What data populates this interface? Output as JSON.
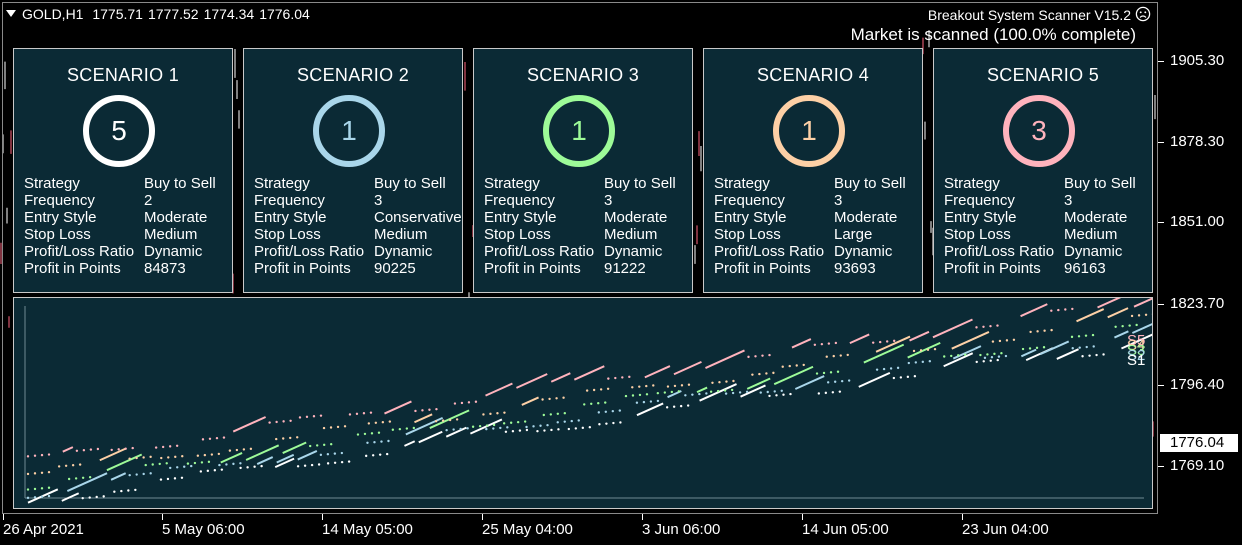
{
  "symbol": {
    "name": "GOLD,H1",
    "open": "1775.71",
    "high": "1777.52",
    "low": "1774.34",
    "close": "1776.04"
  },
  "indicator": {
    "title": "Breakout System Scanner V15.2",
    "status": "Market is scanned (100.0% complete)",
    "status_icon": "sad-face-icon"
  },
  "price_axis": {
    "labels": [
      "1905.30",
      "1878.30",
      "1851.00",
      "1823.70",
      "1796.40",
      "1769.10"
    ],
    "current_price": "1776.04"
  },
  "time_axis": {
    "labels": [
      "26 Apr 2021",
      "5 May 06:00",
      "14 May 05:00",
      "25 May 04:00",
      "3 Jun 06:00",
      "14 Jun 05:00",
      "23 Jun 04:00"
    ]
  },
  "row_labels": [
    "Strategy",
    "Frequency",
    "Entry Style",
    "Stop Loss",
    "Profit/Loss Ratio",
    "Profit in Points"
  ],
  "scenarios": [
    {
      "title": "SCENARIO 1",
      "count": "5",
      "color": "#ffffff",
      "values": [
        "Buy to Sell",
        "2",
        "Moderate",
        "Medium",
        "Dynamic",
        "84873"
      ]
    },
    {
      "title": "SCENARIO 2",
      "count": "1",
      "color": "#a9d6ea",
      "values": [
        "Buy to Sell",
        "3",
        "Conservative",
        "Medium",
        "Dynamic",
        "90225"
      ]
    },
    {
      "title": "SCENARIO 3",
      "count": "1",
      "color": "#9dfb98",
      "values": [
        "Buy to Sell",
        "3",
        "Moderate",
        "Medium",
        "Dynamic",
        "91222"
      ]
    },
    {
      "title": "SCENARIO 4",
      "count": "1",
      "color": "#fdd0a6",
      "values": [
        "Buy to Sell",
        "3",
        "Moderate",
        "Large",
        "Dynamic",
        "93693"
      ]
    },
    {
      "title": "SCENARIO 5",
      "count": "3",
      "color": "#ffb3bd",
      "values": [
        "Buy to Sell",
        "3",
        "Moderate",
        "Medium",
        "Dynamic",
        "96163"
      ]
    }
  ],
  "equity_labels": [
    "S5",
    "S4",
    "S3",
    "S2",
    "S1"
  ],
  "colors": {
    "background": "#000000",
    "panel": "#0b2a35",
    "up_candle": "#ffffff",
    "down_candle": "#ff6680"
  }
}
